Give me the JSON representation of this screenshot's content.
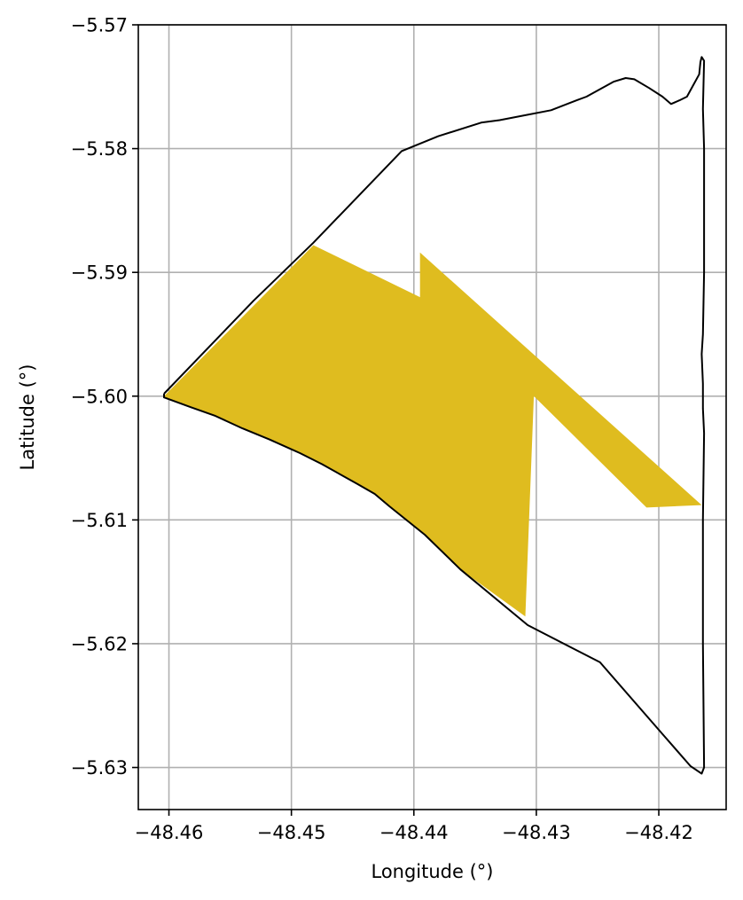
{
  "chart_data": {
    "type": "map",
    "xlabel": "Longitude (°)",
    "ylabel": "Latitude (°)",
    "xlim": [
      -48.4625,
      -48.4145
    ],
    "ylim": [
      -5.6334,
      -5.57
    ],
    "grid": true,
    "xticks": [
      -48.46,
      -48.45,
      -48.44,
      -48.43,
      -48.42
    ],
    "xtick_labels": [
      "−48.46",
      "−48.45",
      "−48.44",
      "−48.43",
      "−48.42"
    ],
    "yticks": [
      -5.57,
      -5.58,
      -5.59,
      -5.6,
      -5.61,
      -5.62,
      -5.63
    ],
    "ytick_labels": [
      "−5.57",
      "−5.58",
      "−5.59",
      "−5.60",
      "−5.61",
      "−5.62",
      "−5.63"
    ],
    "boundary_color": "#000000",
    "fill_color": "#dfbc1f",
    "boundary": [
      [
        -48.4604,
        -5.5998
      ],
      [
        -48.4531,
        -5.5923
      ],
      [
        -48.4482,
        -5.5876
      ],
      [
        -48.441,
        -5.5802
      ],
      [
        -48.438,
        -5.579
      ],
      [
        -48.4345,
        -5.5779
      ],
      [
        -48.433,
        -5.5777
      ],
      [
        -48.4288,
        -5.5769
      ],
      [
        -48.4267,
        -5.5761
      ],
      [
        -48.4259,
        -5.5758
      ],
      [
        -48.4237,
        -5.5746
      ],
      [
        -48.4227,
        -5.5743
      ],
      [
        -48.422,
        -5.5744
      ],
      [
        -48.4208,
        -5.5751
      ],
      [
        -48.4197,
        -5.5758
      ],
      [
        -48.419,
        -5.5764
      ],
      [
        -48.4183,
        -5.5761
      ],
      [
        -48.4177,
        -5.5758
      ],
      [
        -48.4172,
        -5.5749
      ],
      [
        -48.4167,
        -5.574
      ],
      [
        -48.4166,
        -5.573
      ],
      [
        -48.4165,
        -5.5726
      ],
      [
        -48.4163,
        -5.5729
      ],
      [
        -48.4164,
        -5.5768
      ],
      [
        -48.4163,
        -5.58
      ],
      [
        -48.4163,
        -5.585
      ],
      [
        -48.4163,
        -5.59
      ],
      [
        -48.4164,
        -5.595
      ],
      [
        -48.4165,
        -5.5966
      ],
      [
        -48.4164,
        -5.599
      ],
      [
        -48.4164,
        -5.601
      ],
      [
        -48.4163,
        -5.603
      ],
      [
        -48.4164,
        -5.61
      ],
      [
        -48.4164,
        -5.62
      ],
      [
        -48.4163,
        -5.63
      ],
      [
        -48.4165,
        -5.6305
      ],
      [
        -48.4174,
        -5.6299
      ],
      [
        -48.4197,
        -5.6273
      ],
      [
        -48.4248,
        -5.6215
      ],
      [
        -48.4307,
        -5.6185
      ],
      [
        -48.4362,
        -5.614
      ],
      [
        -48.4391,
        -5.6112
      ],
      [
        -48.442,
        -5.6089
      ],
      [
        -48.4432,
        -5.6079
      ],
      [
        -48.4446,
        -5.6071
      ],
      [
        -48.4475,
        -5.6055
      ],
      [
        -48.4493,
        -5.6046
      ],
      [
        -48.4518,
        -5.6035
      ],
      [
        -48.454,
        -5.6026
      ],
      [
        -48.4562,
        -5.6016
      ],
      [
        -48.4582,
        -5.6009
      ],
      [
        -48.4604,
        -5.6001
      ],
      [
        -48.4604,
        -5.5998
      ]
    ],
    "polygon": [
      [
        -48.4604,
        -5.6
      ],
      [
        -48.4482,
        -5.5878
      ],
      [
        -48.4395,
        -5.592
      ],
      [
        -48.4395,
        -5.5884
      ],
      [
        -48.4165,
        -5.6088
      ],
      [
        -48.421,
        -5.609
      ],
      [
        -48.4302,
        -5.6
      ],
      [
        -48.4309,
        -5.6178
      ],
      [
        -48.4362,
        -5.614
      ],
      [
        -48.4391,
        -5.6112
      ],
      [
        -48.442,
        -5.6089
      ],
      [
        -48.4432,
        -5.6079
      ],
      [
        -48.4446,
        -5.6071
      ],
      [
        -48.4475,
        -5.6055
      ],
      [
        -48.4493,
        -5.6046
      ],
      [
        -48.4518,
        -5.6035
      ],
      [
        -48.454,
        -5.6026
      ],
      [
        -48.4562,
        -5.6016
      ],
      [
        -48.4582,
        -5.6009
      ],
      [
        -48.4604,
        -5.6001
      ]
    ]
  }
}
